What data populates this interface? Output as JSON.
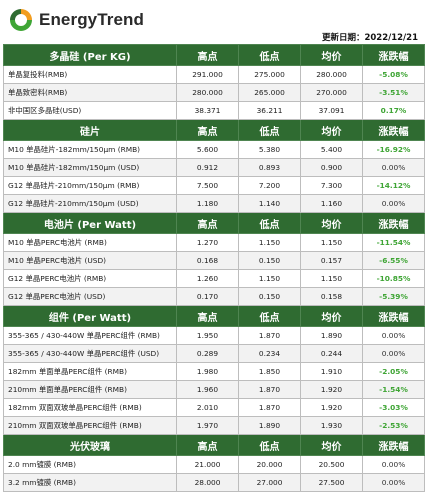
{
  "brand": {
    "name": "EnergyTrend",
    "green": "#2f6b31",
    "accent": "#3fa535",
    "mark_colors": [
      "#f29d1f",
      "#3fa535",
      "#2f6b31"
    ]
  },
  "update_date": "更新日期：2022/12/21",
  "columns": {
    "high": "高点",
    "low": "低点",
    "avg": "均价",
    "change": "涨跌幅"
  },
  "sections": [
    {
      "title": "多晶硅 (Per KG)",
      "rows": [
        {
          "name": "单晶复投料(RMB)",
          "high": "291.000",
          "low": "275.000",
          "avg": "280.000",
          "change": "-5.08%",
          "direction": "down"
        },
        {
          "name": "单晶致密料(RMB)",
          "high": "280.000",
          "low": "265.000",
          "avg": "270.000",
          "change": "-3.51%",
          "direction": "down"
        },
        {
          "name": "非中国区多晶硅(USD)",
          "high": "38.371",
          "low": "36.211",
          "avg": "37.091",
          "change": "0.17%",
          "direction": "up"
        }
      ]
    },
    {
      "title": "硅片",
      "rows": [
        {
          "name": "M10 单晶硅片-182mm/150μm (RMB)",
          "high": "5.600",
          "low": "5.380",
          "avg": "5.400",
          "change": "-16.92%",
          "direction": "down"
        },
        {
          "name": "M10 单晶硅片-182mm/150μm (USD)",
          "high": "0.912",
          "low": "0.893",
          "avg": "0.900",
          "change": "0.00%",
          "direction": "flat"
        },
        {
          "name": "G12 单晶硅片-210mm/150μm (RMB)",
          "high": "7.500",
          "low": "7.200",
          "avg": "7.300",
          "change": "-14.12%",
          "direction": "down"
        },
        {
          "name": "G12 单晶硅片-210mm/150μm (USD)",
          "high": "1.180",
          "low": "1.140",
          "avg": "1.160",
          "change": "0.00%",
          "direction": "flat"
        }
      ]
    },
    {
      "title": "电池片 (Per Watt)",
      "rows": [
        {
          "name": "M10 单晶PERC电池片 (RMB)",
          "high": "1.270",
          "low": "1.150",
          "avg": "1.150",
          "change": "-11.54%",
          "direction": "down"
        },
        {
          "name": "M10 单晶PERC电池片 (USD)",
          "high": "0.168",
          "low": "0.150",
          "avg": "0.157",
          "change": "-6.55%",
          "direction": "down"
        },
        {
          "name": "G12 单晶PERC电池片 (RMB)",
          "high": "1.260",
          "low": "1.150",
          "avg": "1.150",
          "change": "-10.85%",
          "direction": "down"
        },
        {
          "name": "G12 单晶PERC电池片 (USD)",
          "high": "0.170",
          "low": "0.150",
          "avg": "0.158",
          "change": "-5.39%",
          "direction": "down"
        }
      ]
    },
    {
      "title": "组件 (Per Watt)",
      "rows": [
        {
          "name": "355-365 / 430-440W 单晶PERC组件 (RMB)",
          "high": "1.950",
          "low": "1.870",
          "avg": "1.890",
          "change": "0.00%",
          "direction": "flat"
        },
        {
          "name": "355-365 / 430-440W 单晶PERC组件 (USD)",
          "high": "0.289",
          "low": "0.234",
          "avg": "0.244",
          "change": "0.00%",
          "direction": "flat"
        },
        {
          "name": "182mm 单面单晶PERC组件 (RMB)",
          "high": "1.980",
          "low": "1.850",
          "avg": "1.910",
          "change": "-2.05%",
          "direction": "down"
        },
        {
          "name": "210mm 单面单晶PERC组件 (RMB)",
          "high": "1.960",
          "low": "1.870",
          "avg": "1.920",
          "change": "-1.54%",
          "direction": "down"
        },
        {
          "name": "182mm 双面双玻单晶PERC组件 (RMB)",
          "high": "2.010",
          "low": "1.870",
          "avg": "1.920",
          "change": "-3.03%",
          "direction": "down"
        },
        {
          "name": "210mm 双面双玻单晶PERC组件 (RMB)",
          "high": "1.970",
          "low": "1.890",
          "avg": "1.930",
          "change": "-2.53%",
          "direction": "down"
        }
      ]
    },
    {
      "title": "光伏玻璃",
      "rows": [
        {
          "name": "2.0 mm镀膜 (RMB)",
          "high": "21.000",
          "low": "20.000",
          "avg": "20.500",
          "change": "0.00%",
          "direction": "flat"
        },
        {
          "name": "3.2 mm镀膜 (RMB)",
          "high": "28.000",
          "low": "27.000",
          "avg": "27.500",
          "change": "0.00%",
          "direction": "flat"
        }
      ]
    }
  ]
}
